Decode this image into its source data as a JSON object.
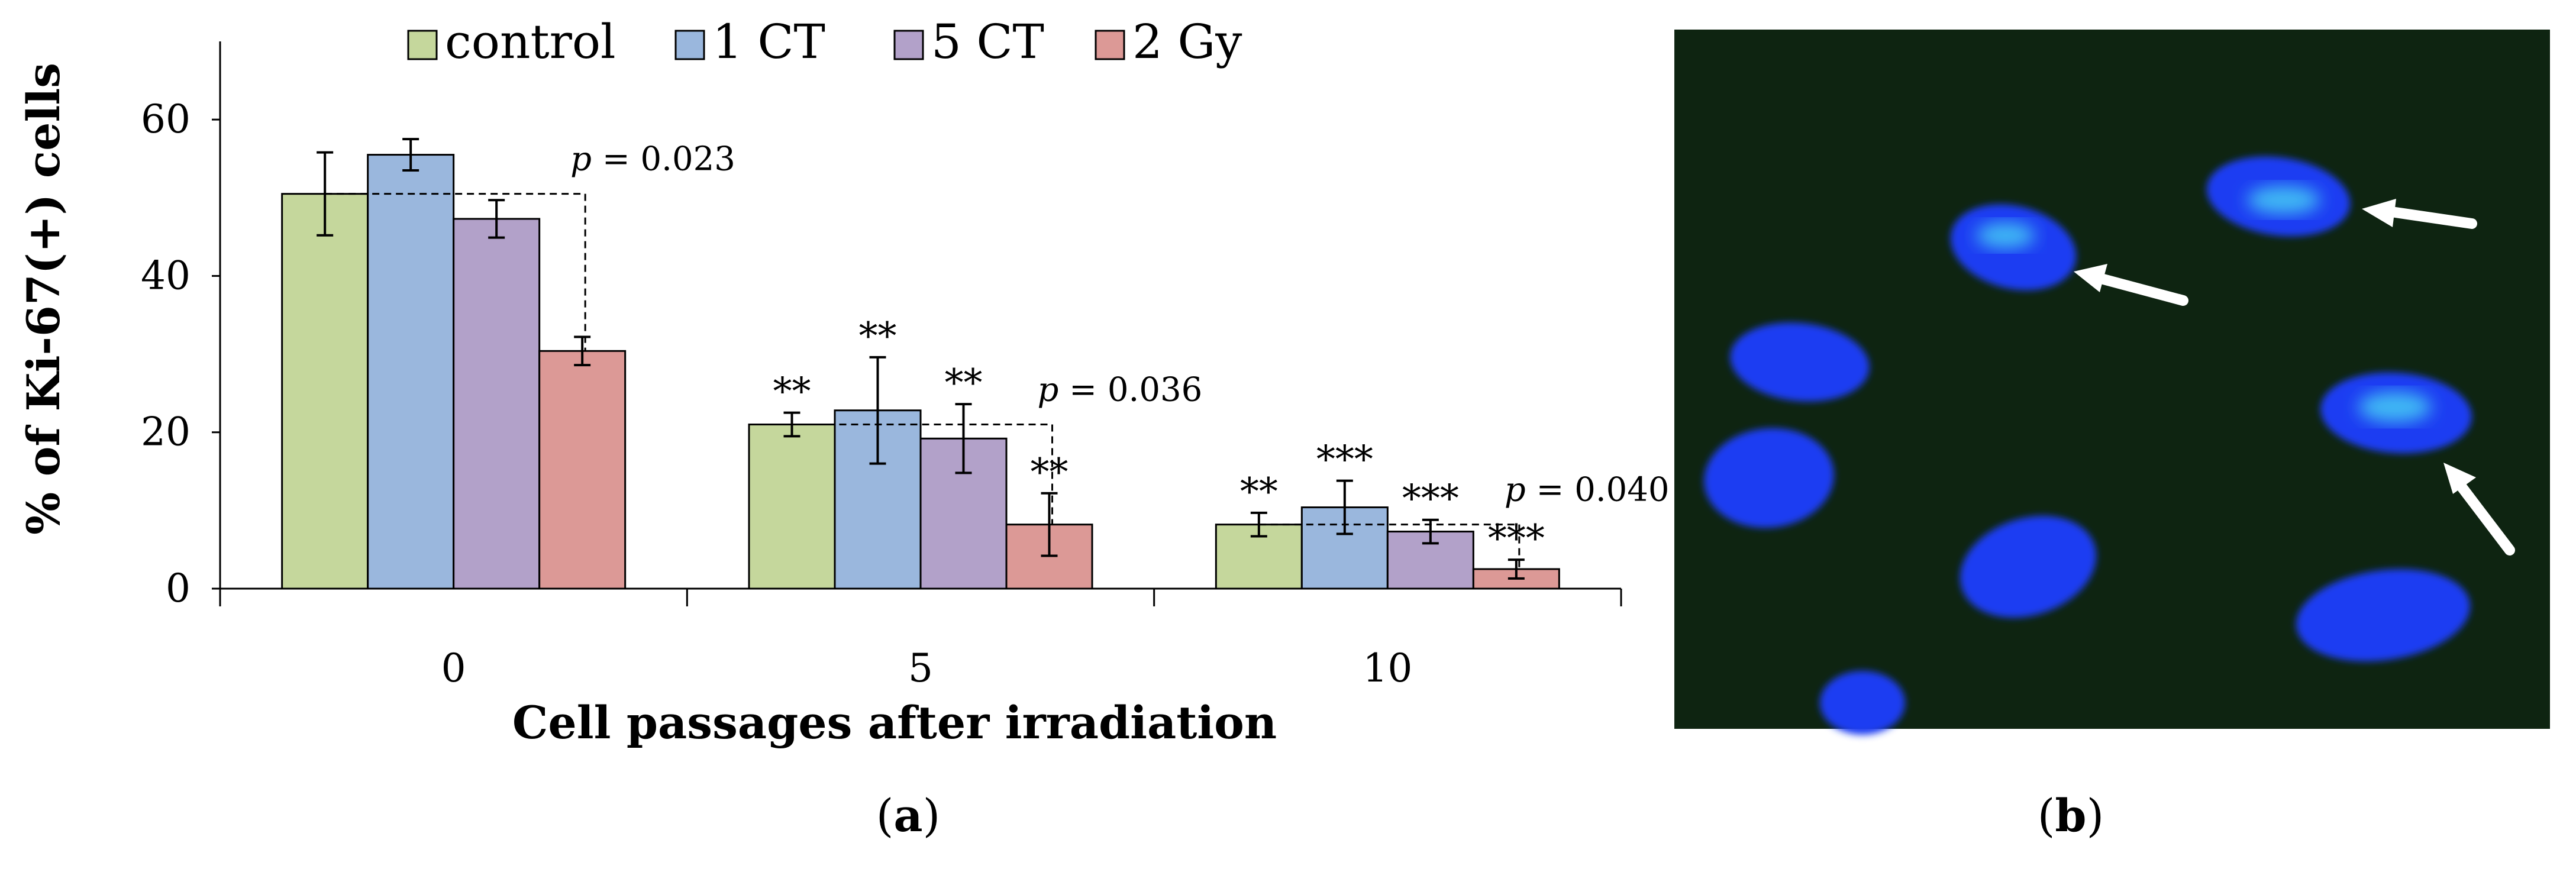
{
  "colors": {
    "control": "#c5d79c",
    "1 CT": "#9ab7dd",
    "5 CT": "#b2a1c9",
    "2 Gy": "#dc9996",
    "micro_bg": "#0e2411",
    "nucleus": "#1e3cf2",
    "nucleus_bright": "#3fb8f4",
    "arrow": "#ffffff"
  },
  "panel_labels": {
    "a": "(a)",
    "b": "(b)",
    "a_letter": "a",
    "b_letter": "b"
  },
  "chart_data": {
    "type": "bar",
    "title": "",
    "xlabel": "Cell passages after irradiation",
    "ylabel": "% of Ki-67(+) cells",
    "categories": [
      "0",
      "5",
      "10"
    ],
    "ylim": [
      0,
      70
    ],
    "yticks": [
      0,
      20,
      40,
      60
    ],
    "grid": false,
    "legend": {
      "position": "top",
      "entries": [
        "control",
        "1 CT",
        "5 CT",
        "2 Gy"
      ]
    },
    "series": [
      {
        "name": "control",
        "values": [
          50.5,
          21.0,
          8.2
        ],
        "errors": [
          5.3,
          1.5,
          1.5
        ],
        "significance": [
          "",
          "**",
          "**"
        ]
      },
      {
        "name": "1 CT",
        "values": [
          55.5,
          22.8,
          10.4
        ],
        "errors": [
          2.0,
          6.8,
          3.4
        ],
        "significance": [
          "",
          "**",
          "***"
        ]
      },
      {
        "name": "5 CT",
        "values": [
          47.3,
          19.2,
          7.3
        ],
        "errors": [
          2.4,
          4.4,
          1.5
        ],
        "significance": [
          "",
          "**",
          "***"
        ]
      },
      {
        "name": "2 Gy",
        "values": [
          30.4,
          8.2,
          2.5
        ],
        "errors": [
          1.8,
          4.0,
          1.2
        ],
        "significance": [
          "",
          "**",
          "***"
        ]
      }
    ],
    "annotations": [
      {
        "group": 0,
        "line_value": 50.5,
        "p_symbol": "p",
        "p_text": " = 0.023"
      },
      {
        "group": 1,
        "line_value": 21.0,
        "p_symbol": "p",
        "p_text": " = 0.036"
      },
      {
        "group": 2,
        "line_value": 8.2,
        "p_symbol": "p",
        "p_text": " = 0.040"
      }
    ]
  }
}
